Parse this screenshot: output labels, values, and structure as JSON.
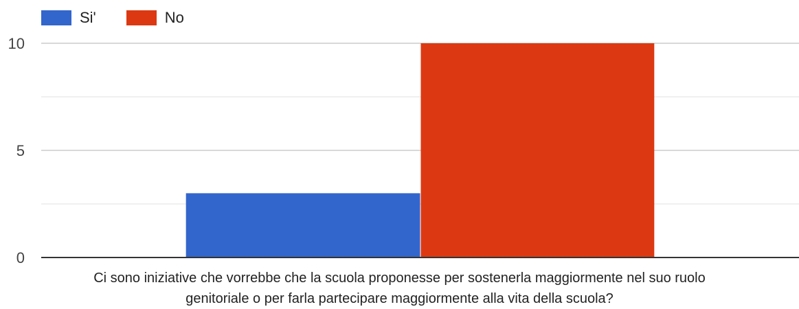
{
  "chart_data": {
    "type": "bar",
    "categories": [
      "Ci sono iniziative che vorrebbe che la scuola proponesse per sostenerla maggiormente nel suo ruolo genitoriale o per farla partecipare maggiormente alla vita della scuola?"
    ],
    "xlabel_lines": [
      "Ci sono iniziative che vorrebbe che la scuola proponesse per sostenerla maggiormente nel suo ruolo",
      "genitoriale o per farla partecipare maggiormente alla vita della scuola?"
    ],
    "series": [
      {
        "name": "Si'",
        "values": [
          3
        ],
        "color": "#3366cc"
      },
      {
        "name": "No",
        "values": [
          10
        ],
        "color": "#dc3912"
      }
    ],
    "ylim": [
      0,
      10
    ],
    "yticks": [
      0,
      5,
      10
    ],
    "grid": true,
    "legend": "top-left"
  }
}
